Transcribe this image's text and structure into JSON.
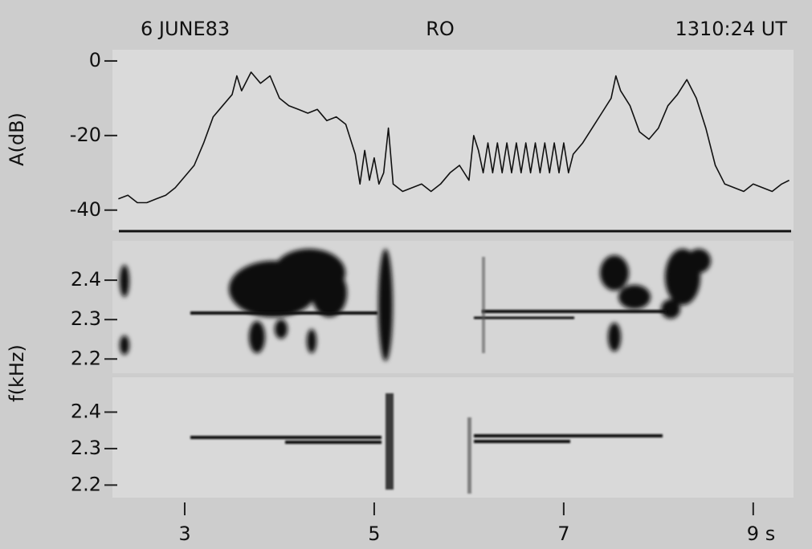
{
  "header": {
    "date": "6 JUNE83",
    "station": "RO",
    "time": "1310:24 UT"
  },
  "chart_data": [
    {
      "type": "line",
      "ylabel": "A(dB)",
      "xlim": [
        2.3,
        9.4
      ],
      "xticks": [
        3,
        5,
        7,
        {
          "value": 9,
          "label": "9 s"
        }
      ],
      "ylim": [
        -45,
        3
      ],
      "yticks": [
        0,
        -20,
        -40
      ],
      "x": [
        2.3,
        2.4,
        2.5,
        2.6,
        2.7,
        2.8,
        2.9,
        3.0,
        3.1,
        3.2,
        3.3,
        3.4,
        3.5,
        3.55,
        3.6,
        3.7,
        3.8,
        3.9,
        4.0,
        4.1,
        4.2,
        4.3,
        4.4,
        4.5,
        4.6,
        4.7,
        4.8,
        4.85,
        4.9,
        4.95,
        5.0,
        5.05,
        5.1,
        5.15,
        5.2,
        5.3,
        5.4,
        5.5,
        5.6,
        5.7,
        5.8,
        5.9,
        6.0,
        6.05,
        6.1,
        6.15,
        6.2,
        6.25,
        6.3,
        6.35,
        6.4,
        6.45,
        6.5,
        6.55,
        6.6,
        6.65,
        6.7,
        6.75,
        6.8,
        6.85,
        6.9,
        6.95,
        7.0,
        7.05,
        7.1,
        7.2,
        7.3,
        7.4,
        7.5,
        7.55,
        7.6,
        7.7,
        7.8,
        7.9,
        8.0,
        8.1,
        8.2,
        8.3,
        8.4,
        8.5,
        8.6,
        8.7,
        8.8,
        8.9,
        9.0,
        9.1,
        9.2,
        9.3,
        9.38
      ],
      "values": [
        -37,
        -36,
        -38,
        -38,
        -37,
        -36,
        -34,
        -31,
        -28,
        -22,
        -15,
        -12,
        -9,
        -4,
        -8,
        -3,
        -6,
        -4,
        -10,
        -12,
        -13,
        -14,
        -13,
        -16,
        -15,
        -17,
        -25,
        -33,
        -24,
        -32,
        -26,
        -33,
        -30,
        -18,
        -33,
        -35,
        -34,
        -33,
        -35,
        -33,
        -30,
        -28,
        -32,
        -20,
        -24,
        -30,
        -22,
        -30,
        -22,
        -30,
        -22,
        -30,
        -22,
        -30,
        -22,
        -30,
        -22,
        -30,
        -22,
        -30,
        -22,
        -30,
        -22,
        -30,
        -25,
        -22,
        -18,
        -14,
        -10,
        -4,
        -8,
        -12,
        -19,
        -21,
        -18,
        -12,
        -9,
        -5,
        -10,
        -18,
        -28,
        -33,
        -34,
        -35,
        -33,
        -34,
        -35,
        -33,
        -32
      ],
      "color": "#111111"
    },
    {
      "type": "spectrogram",
      "ylim": [
        2.17,
        2.5
      ],
      "yticks": [
        2.2,
        2.3,
        2.4
      ]
    },
    {
      "type": "spectrogram",
      "ylabel": "f(kHz)",
      "ylim": [
        2.17,
        2.5
      ],
      "yticks": [
        2.2,
        2.3,
        2.4
      ]
    }
  ]
}
